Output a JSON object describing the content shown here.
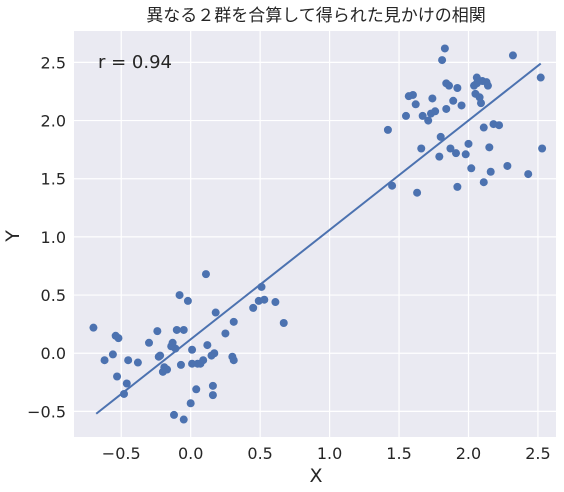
{
  "chart_data": {
    "type": "scatter",
    "title": "異なる２群を合算して得られた見かけの相関",
    "xlabel": "X",
    "ylabel": "Y",
    "xlim": [
      -0.84,
      2.63
    ],
    "ylim": [
      -0.72,
      2.77
    ],
    "xticks": [
      -0.5,
      0.0,
      0.5,
      1.0,
      1.5,
      2.0,
      2.5
    ],
    "xtick_labels": [
      "−0.5",
      "0.0",
      "0.5",
      "1.0",
      "1.5",
      "2.0",
      "2.5"
    ],
    "yticks": [
      -0.5,
      0.0,
      0.5,
      1.0,
      1.5,
      2.0,
      2.5
    ],
    "ytick_labels": [
      "−0.5",
      "0.0",
      "0.5",
      "1.0",
      "1.5",
      "2.0",
      "2.5"
    ],
    "grid": true,
    "annotation": "r = 0.94",
    "colors": {
      "background": "#eaeaf2",
      "grid": "#ffffff",
      "points": "#4c72b0",
      "line": "#4c72b0"
    },
    "trend_line": {
      "x": [
        -0.68,
        2.52
      ],
      "y": [
        -0.52,
        2.49
      ]
    },
    "points": [
      [
        -0.7,
        0.22
      ],
      [
        -0.62,
        -0.06
      ],
      [
        -0.56,
        -0.01
      ],
      [
        -0.54,
        0.15
      ],
      [
        -0.53,
        -0.2
      ],
      [
        -0.52,
        0.13
      ],
      [
        -0.48,
        -0.35
      ],
      [
        -0.46,
        -0.26
      ],
      [
        -0.45,
        -0.06
      ],
      [
        -0.38,
        -0.08
      ],
      [
        -0.3,
        0.09
      ],
      [
        -0.24,
        0.19
      ],
      [
        -0.23,
        -0.03
      ],
      [
        -0.22,
        -0.02
      ],
      [
        -0.2,
        -0.16
      ],
      [
        -0.19,
        -0.12
      ],
      [
        -0.17,
        -0.14
      ],
      [
        -0.14,
        0.06
      ],
      [
        -0.13,
        0.09
      ],
      [
        -0.12,
        -0.53
      ],
      [
        -0.11,
        0.04
      ],
      [
        -0.1,
        0.2
      ],
      [
        -0.08,
        0.5
      ],
      [
        -0.07,
        -0.1
      ],
      [
        -0.05,
        -0.57
      ],
      [
        -0.05,
        0.2
      ],
      [
        -0.02,
        0.45
      ],
      [
        0.0,
        -0.43
      ],
      [
        0.01,
        0.03
      ],
      [
        0.01,
        -0.09
      ],
      [
        0.04,
        -0.31
      ],
      [
        0.05,
        -0.09
      ],
      [
        0.07,
        -0.09
      ],
      [
        0.09,
        -0.06
      ],
      [
        0.11,
        0.68
      ],
      [
        0.12,
        0.07
      ],
      [
        0.15,
        -0.02
      ],
      [
        0.16,
        -0.28
      ],
      [
        0.16,
        -0.36
      ],
      [
        0.17,
        0.0
      ],
      [
        0.18,
        0.35
      ],
      [
        0.25,
        0.17
      ],
      [
        0.3,
        -0.03
      ],
      [
        0.31,
        -0.06
      ],
      [
        0.31,
        0.27
      ],
      [
        0.45,
        0.39
      ],
      [
        0.49,
        0.45
      ],
      [
        0.51,
        0.57
      ],
      [
        0.53,
        0.46
      ],
      [
        0.61,
        0.44
      ],
      [
        0.67,
        0.26
      ],
      [
        1.42,
        1.92
      ],
      [
        1.45,
        1.44
      ],
      [
        1.55,
        2.04
      ],
      [
        1.57,
        2.21
      ],
      [
        1.6,
        2.22
      ],
      [
        1.62,
        2.14
      ],
      [
        1.63,
        1.38
      ],
      [
        1.66,
        1.76
      ],
      [
        1.67,
        2.04
      ],
      [
        1.71,
        2.0
      ],
      [
        1.73,
        2.06
      ],
      [
        1.74,
        2.19
      ],
      [
        1.76,
        2.08
      ],
      [
        1.79,
        1.69
      ],
      [
        1.8,
        1.86
      ],
      [
        1.81,
        2.52
      ],
      [
        1.83,
        2.62
      ],
      [
        1.84,
        2.32
      ],
      [
        1.84,
        2.1
      ],
      [
        1.86,
        2.3
      ],
      [
        1.87,
        1.76
      ],
      [
        1.89,
        2.17
      ],
      [
        1.91,
        1.72
      ],
      [
        1.92,
        2.28
      ],
      [
        1.92,
        1.43
      ],
      [
        1.95,
        2.13
      ],
      [
        1.98,
        1.71
      ],
      [
        2.0,
        1.8
      ],
      [
        2.02,
        1.59
      ],
      [
        2.04,
        2.3
      ],
      [
        2.05,
        2.23
      ],
      [
        2.06,
        2.37
      ],
      [
        2.06,
        2.32
      ],
      [
        2.08,
        2.2
      ],
      [
        2.09,
        2.15
      ],
      [
        2.1,
        2.34
      ],
      [
        2.11,
        1.47
      ],
      [
        2.11,
        1.94
      ],
      [
        2.13,
        2.33
      ],
      [
        2.14,
        2.3
      ],
      [
        2.15,
        1.77
      ],
      [
        2.16,
        1.56
      ],
      [
        2.18,
        1.97
      ],
      [
        2.22,
        1.96
      ],
      [
        2.28,
        1.61
      ],
      [
        2.32,
        2.56
      ],
      [
        2.43,
        1.54
      ],
      [
        2.52,
        2.37
      ],
      [
        2.53,
        1.76
      ]
    ]
  }
}
